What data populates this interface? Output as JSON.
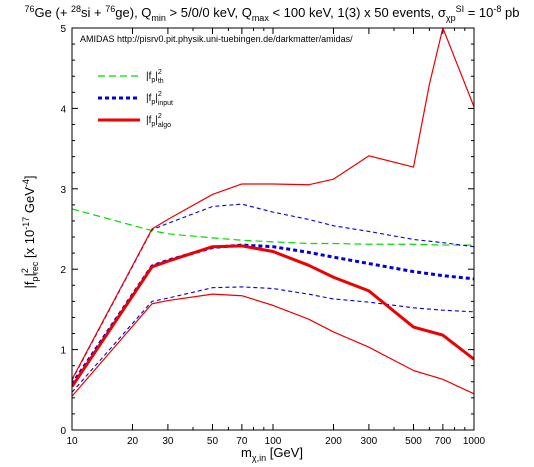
{
  "chart_data": {
    "type": "line",
    "title": {
      "ge_super": "76",
      "part1": "Ge (+ ",
      "si_super": "28",
      "part2": "si + ",
      "ge2_super": "76",
      "part3": "ge), Q",
      "qmin_sub": "min",
      "part4": " > 5/0/0 keV, Q",
      "qmax_sub": "max",
      "part5": " < 100 keV, 1(3) x 50 events, σ",
      "sigma_sub": "χp",
      "sigma_super": "SI",
      "part6": " = 10",
      "exp_super": "-8",
      "part7": " pb"
    },
    "subtitle": "AMIDAS   http://pisrv0.pit.physik.uni-tuebingen.de/darkmatter/amidas/",
    "xlabel": {
      "main": "m",
      "sub": "χ,in",
      "unit": " [GeV]"
    },
    "ylabel": {
      "main": "|f",
      "sub1": "p",
      "bar": "|",
      "sup": "2",
      "sub2": "rec",
      "unit1": "  [x 10",
      "exp": "-17",
      "unit2": " GeV",
      "exp2": "-4",
      "unit3": "]"
    },
    "x_scale": "log",
    "xlim": [
      10,
      1000
    ],
    "ylim": [
      0,
      5
    ],
    "x_ticks": [
      10,
      20,
      30,
      50,
      70,
      100,
      200,
      300,
      500,
      700,
      1000
    ],
    "y_ticks": [
      0,
      1,
      2,
      3,
      4,
      5
    ],
    "legend_position": "top-left",
    "legend": [
      {
        "main": "|f",
        "sub1": "p",
        "bar": "|",
        "sup": "2",
        "sub2": "th",
        "color": "#00dd00",
        "dash": "dashed",
        "width": "thin"
      },
      {
        "main": "|f",
        "sub1": "p",
        "bar": "|",
        "sup": "2",
        "sub2": "input",
        "color": "#0000dd",
        "dash": "dotted",
        "width": "thick"
      },
      {
        "main": "|f",
        "sub1": "p",
        "bar": "|",
        "sup": "2",
        "sub2": "algo",
        "color": "#ee0000",
        "dash": "solid",
        "width": "thick"
      }
    ],
    "series": [
      {
        "role": "th",
        "color": "#00dd00",
        "x": [
          10,
          25,
          30,
          50,
          70,
          100,
          150,
          200,
          300,
          500,
          700,
          1000
        ],
        "y": [
          2.75,
          2.48,
          2.44,
          2.39,
          2.36,
          2.34,
          2.32,
          2.32,
          2.31,
          2.31,
          2.3,
          2.3
        ]
      },
      {
        "role": "input",
        "color": "#0000dd",
        "x": [
          10,
          25,
          30,
          50,
          70,
          100,
          150,
          200,
          300,
          500,
          700,
          1000
        ],
        "y": [
          0.57,
          2.04,
          2.11,
          2.27,
          2.3,
          2.28,
          2.21,
          2.15,
          2.07,
          1.97,
          1.92,
          1.88
        ]
      },
      {
        "role": "input-upper",
        "color": "#0000dd",
        "x": [
          10,
          25,
          30,
          50,
          70,
          100,
          150,
          200,
          300,
          500,
          700,
          1000
        ],
        "y": [
          0.62,
          2.49,
          2.57,
          2.78,
          2.81,
          2.71,
          2.62,
          2.54,
          2.47,
          2.37,
          2.33,
          2.28
        ]
      },
      {
        "role": "input-lower",
        "color": "#0000dd",
        "x": [
          10,
          25,
          30,
          50,
          70,
          100,
          150,
          200,
          300,
          500,
          700,
          1000
        ],
        "y": [
          0.47,
          1.6,
          1.64,
          1.77,
          1.78,
          1.76,
          1.69,
          1.63,
          1.59,
          1.52,
          1.49,
          1.47
        ]
      },
      {
        "role": "algo",
        "color": "#ee0000",
        "x": [
          10,
          25,
          30,
          50,
          70,
          100,
          150,
          200,
          300,
          500,
          700,
          1000
        ],
        "y": [
          0.54,
          2.03,
          2.1,
          2.28,
          2.29,
          2.22,
          2.05,
          1.9,
          1.73,
          1.28,
          1.18,
          0.88
        ]
      },
      {
        "role": "algo-upper",
        "color": "#ee0000",
        "x": [
          10,
          25,
          30,
          50,
          70,
          100,
          150,
          200,
          300,
          500,
          600,
          700,
          1000
        ],
        "y": [
          0.63,
          2.5,
          2.62,
          2.93,
          3.06,
          3.06,
          3.05,
          3.12,
          3.41,
          3.27,
          4.3,
          5.0,
          4.02
        ]
      },
      {
        "role": "algo-lower",
        "color": "#ee0000",
        "x": [
          10,
          25,
          30,
          50,
          70,
          100,
          150,
          200,
          300,
          500,
          700,
          1000
        ],
        "y": [
          0.42,
          1.57,
          1.61,
          1.69,
          1.67,
          1.55,
          1.38,
          1.22,
          1.03,
          0.74,
          0.63,
          0.45
        ]
      }
    ]
  }
}
